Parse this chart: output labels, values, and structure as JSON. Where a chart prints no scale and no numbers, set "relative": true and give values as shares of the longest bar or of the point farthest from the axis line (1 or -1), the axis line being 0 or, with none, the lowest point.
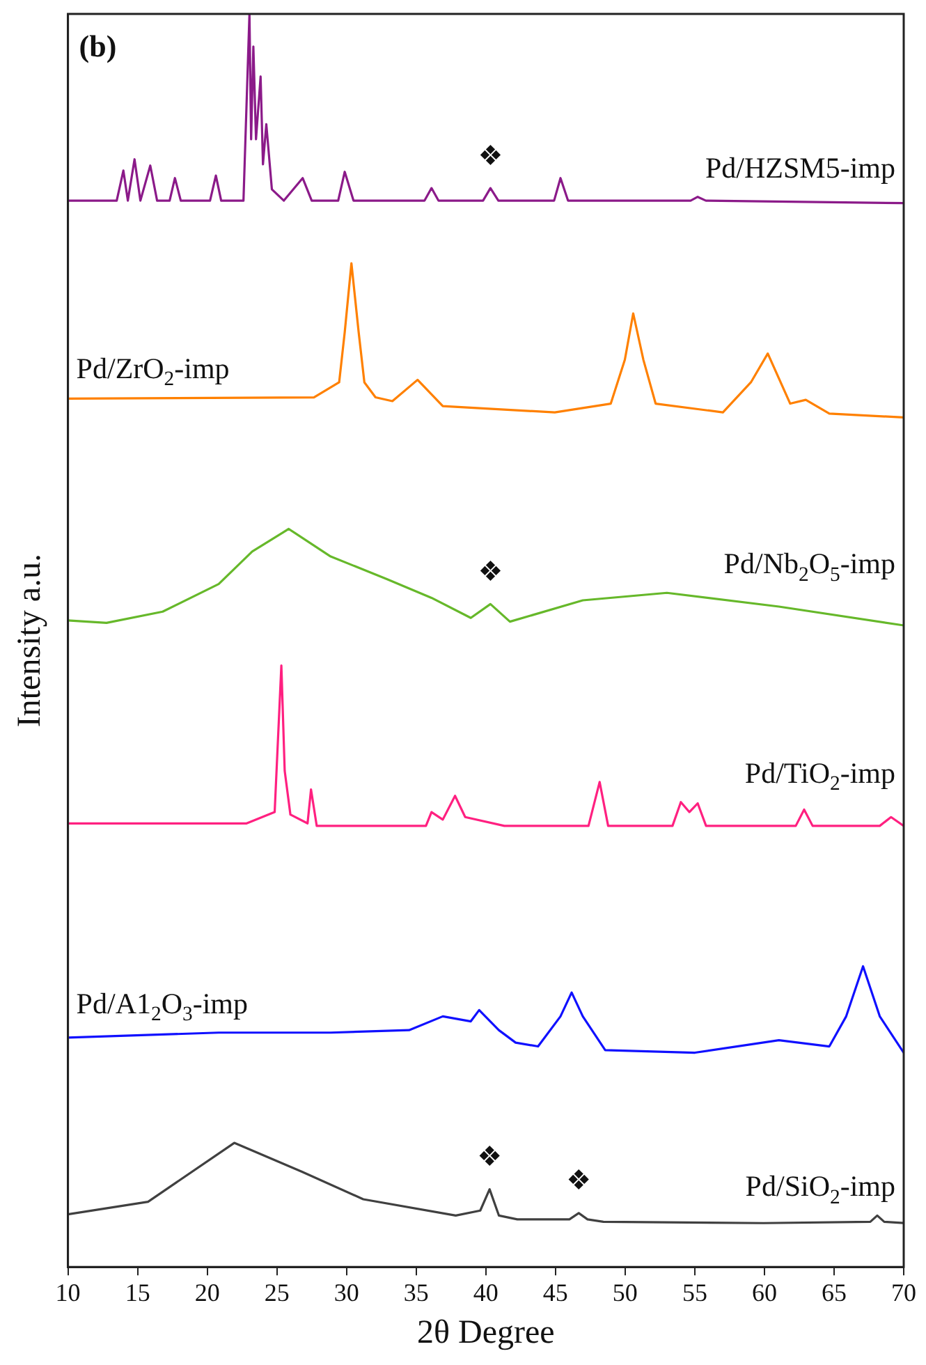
{
  "chart_data": {
    "type": "line",
    "relative": true,
    "xlabel": "2θ Degree",
    "ylabel": "Intensity a.u.",
    "xlim": [
      10,
      70
    ],
    "xticks": [
      10,
      15,
      20,
      25,
      30,
      35,
      40,
      45,
      50,
      55,
      60,
      65,
      70
    ],
    "annotations": [
      "(b)",
      {
        "text": "❖",
        "x": 40.33,
        "y": 0.861
      },
      {
        "text": "❖",
        "x": 40.33,
        "y": 0.529
      },
      {
        "text": "❖",
        "x": 40.27,
        "y": 0.062
      },
      {
        "text": "❖",
        "x": 46.67,
        "y": 0.043
      }
    ],
    "series": [
      {
        "name": "Pd/HZSM5-imp",
        "color": "#8b1a89",
        "x": [
          10,
          13.5,
          13.98,
          14.3,
          14.78,
          15.2,
          15.91,
          16.4,
          17.3,
          17.68,
          18.1,
          20.2,
          20.62,
          21.0,
          22.6,
          23.03,
          23.15,
          23.31,
          23.5,
          23.83,
          24.0,
          24.24,
          24.64,
          25.5,
          26.85,
          27.5,
          29.4,
          29.87,
          30.5,
          35.6,
          36.1,
          36.6,
          39.8,
          40.33,
          40.9,
          44.9,
          45.36,
          45.9,
          54.7,
          55.21,
          55.8,
          70
        ],
        "values": [
          0.851,
          0.851,
          0.875,
          0.851,
          0.884,
          0.851,
          0.879,
          0.851,
          0.851,
          0.869,
          0.851,
          0.851,
          0.871,
          0.851,
          0.851,
          1.0,
          0.9,
          0.974,
          0.9,
          0.95,
          0.88,
          0.912,
          0.86,
          0.851,
          0.869,
          0.851,
          0.851,
          0.874,
          0.851,
          0.851,
          0.861,
          0.851,
          0.851,
          0.861,
          0.851,
          0.851,
          0.869,
          0.851,
          0.851,
          0.854,
          0.851,
          0.849
        ]
      },
      {
        "name": "Pd/ZrO$_{2}$-imp",
        "color": "#ff8000",
        "x": [
          10,
          27.66,
          29.47,
          29.87,
          30.35,
          30.87,
          31.28,
          32.08,
          33.29,
          35.1,
          36.91,
          44.95,
          48.97,
          49.98,
          50.58,
          51.31,
          52.19,
          57.02,
          59.03,
          60.24,
          61.85,
          62.97,
          64.66,
          70
        ],
        "values": [
          0.693,
          0.694,
          0.706,
          0.746,
          0.801,
          0.746,
          0.706,
          0.694,
          0.691,
          0.708,
          0.687,
          0.682,
          0.689,
          0.724,
          0.761,
          0.724,
          0.689,
          0.682,
          0.706,
          0.729,
          0.689,
          0.692,
          0.681,
          0.678
        ]
      },
      {
        "name": "Pd/Nb$_{2}$O$_{5}$-imp",
        "color": "#66b82a",
        "x": [
          10,
          12.77,
          16.8,
          20.82,
          23.23,
          25.85,
          28.86,
          32.89,
          36.1,
          38.92,
          40.33,
          41.73,
          46.96,
          53.0,
          61.04,
          70
        ],
        "values": [
          0.516,
          0.514,
          0.523,
          0.545,
          0.571,
          0.589,
          0.567,
          0.549,
          0.534,
          0.518,
          0.529,
          0.515,
          0.532,
          0.538,
          0.527,
          0.512
        ]
      },
      {
        "name": "Pd/TiO$_{2}$-imp",
        "color": "#ff2080",
        "x": [
          10,
          22.83,
          24.84,
          25.32,
          25.56,
          25.97,
          27.2,
          27.45,
          27.86,
          35.7,
          36.1,
          36.91,
          37.79,
          38.52,
          41.33,
          47.37,
          48.17,
          48.78,
          53.4,
          54.0,
          54.61,
          55.21,
          55.81,
          62.25,
          62.85,
          63.46,
          68.28,
          69.09,
          70
        ],
        "values": [
          0.354,
          0.354,
          0.363,
          0.48,
          0.396,
          0.361,
          0.354,
          0.381,
          0.352,
          0.352,
          0.363,
          0.357,
          0.376,
          0.359,
          0.352,
          0.352,
          0.387,
          0.352,
          0.352,
          0.371,
          0.363,
          0.37,
          0.352,
          0.352,
          0.365,
          0.352,
          0.352,
          0.359,
          0.352
        ]
      },
      {
        "name": "Pd/A1$_{2}$O$_{3}$-imp",
        "color": "#1010ff",
        "x": [
          10,
          20.82,
          28.86,
          34.49,
          36.91,
          38.92,
          39.52,
          40.93,
          42.14,
          43.75,
          45.36,
          46.16,
          46.96,
          48.57,
          55.01,
          61.04,
          64.66,
          65.87,
          67.08,
          68.28,
          70
        ],
        "values": [
          0.183,
          0.187,
          0.187,
          0.189,
          0.2,
          0.196,
          0.205,
          0.189,
          0.179,
          0.176,
          0.2,
          0.219,
          0.2,
          0.173,
          0.171,
          0.181,
          0.176,
          0.2,
          0.24,
          0.2,
          0.171
        ]
      },
      {
        "name": "Pd/SiO$_{2}$-imp",
        "color": "#404040",
        "x": [
          10,
          15.75,
          21.94,
          26.8,
          31.2,
          37.84,
          39.6,
          40.27,
          40.94,
          42.26,
          46.0,
          46.67,
          47.3,
          48.44,
          59.93,
          67.6,
          68.1,
          68.6,
          70
        ],
        "values": [
          0.042,
          0.052,
          0.099,
          0.076,
          0.054,
          0.041,
          0.045,
          0.062,
          0.041,
          0.038,
          0.038,
          0.043,
          0.038,
          0.036,
          0.035,
          0.036,
          0.041,
          0.036,
          0.035
        ]
      }
    ]
  }
}
